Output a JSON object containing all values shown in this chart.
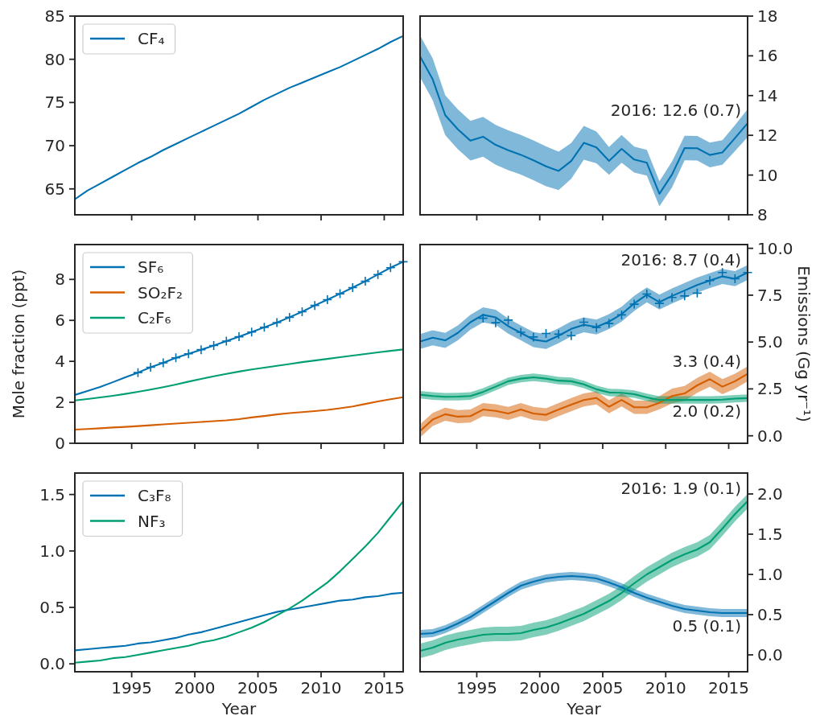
{
  "chart_data": [
    {
      "type": "line",
      "x": [
        1990.5,
        1991.5,
        1992.5,
        1993.5,
        1994.5,
        1995.5,
        1996.5,
        1997.5,
        1998.5,
        1999.5,
        2000.5,
        2001.5,
        2002.5,
        2003.5,
        2004.5,
        2005.5,
        2006.5,
        2007.5,
        2008.5,
        2009.5,
        2010.5,
        2011.5,
        2012.5,
        2013.5,
        2014.5,
        2015.5,
        2016.5
      ],
      "xlim": [
        1990.5,
        2016.5
      ],
      "xticks": [
        1995,
        2000,
        2005,
        2010,
        2015
      ],
      "ylim": [
        62,
        85
      ],
      "yticks": [
        65,
        70,
        75,
        80,
        85
      ],
      "tick_labels": "y",
      "legend": "top left",
      "series": [
        {
          "name": "CF₄",
          "color": "#0072b2",
          "values": [
            63.8,
            64.8,
            65.6,
            66.4,
            67.2,
            68.0,
            68.7,
            69.5,
            70.2,
            70.9,
            71.6,
            72.3,
            73.0,
            73.7,
            74.5,
            75.3,
            76.0,
            76.7,
            77.3,
            77.9,
            78.5,
            79.1,
            79.8,
            80.5,
            81.2,
            82.0,
            82.7
          ]
        }
      ]
    },
    {
      "type": "line",
      "x": [
        1990.5,
        1991.5,
        1992.5,
        1993.5,
        1994.5,
        1995.5,
        1996.5,
        1997.5,
        1998.5,
        1999.5,
        2000.5,
        2001.5,
        2002.5,
        2003.5,
        2004.5,
        2005.5,
        2006.5,
        2007.5,
        2008.5,
        2009.5,
        2010.5,
        2011.5,
        2012.5,
        2013.5,
        2014.5,
        2015.5,
        2016.5
      ],
      "xlim": [
        1990.5,
        2016.5
      ],
      "xticks": [
        1995,
        2000,
        2005,
        2010,
        2015
      ],
      "ylim": [
        8,
        18
      ],
      "yticks": [
        8,
        10,
        12,
        14,
        16,
        18
      ],
      "tick_labels": "y",
      "series": [
        {
          "color": "#0072b2",
          "values": [
            15.97,
            14.82,
            13.01,
            12.3,
            11.73,
            11.93,
            11.52,
            11.25,
            11.02,
            10.74,
            10.44,
            10.21,
            10.71,
            11.62,
            11.39,
            10.71,
            11.32,
            10.78,
            10.62,
            9.06,
            10.03,
            11.36,
            11.35,
            11.01,
            11.14,
            11.86,
            12.61
          ],
          "lower": [
            14.92,
            13.77,
            12.01,
            11.3,
            10.73,
            10.93,
            10.52,
            10.25,
            10.02,
            9.74,
            9.44,
            9.24,
            9.81,
            10.77,
            10.59,
            10.01,
            10.62,
            10.13,
            9.97,
            8.43,
            9.38,
            10.74,
            10.73,
            10.39,
            10.52,
            11.21,
            11.91
          ],
          "upper": [
            17.02,
            15.87,
            14.01,
            13.3,
            12.73,
            12.93,
            12.52,
            12.25,
            12.02,
            11.74,
            11.44,
            11.18,
            11.61,
            12.47,
            12.19,
            11.41,
            12.02,
            11.43,
            11.27,
            9.69,
            10.68,
            11.98,
            11.97,
            11.63,
            11.76,
            12.51,
            13.31
          ]
        }
      ],
      "annotations": [
        "2016: 12.6 (0.7)"
      ]
    },
    {
      "type": "line",
      "x": [
        1990.5,
        1991.5,
        1992.5,
        1993.5,
        1994.5,
        1995.5,
        1996.5,
        1997.5,
        1998.5,
        1999.5,
        2000.5,
        2001.5,
        2002.5,
        2003.5,
        2004.5,
        2005.5,
        2006.5,
        2007.5,
        2008.5,
        2009.5,
        2010.5,
        2011.5,
        2012.5,
        2013.5,
        2014.5,
        2015.5,
        2016.5
      ],
      "xlim": [
        1990.5,
        2016.5
      ],
      "xticks": [
        1995,
        2000,
        2005,
        2010,
        2015
      ],
      "ylim": [
        0,
        9.7
      ],
      "yticks": [
        0,
        2,
        4,
        6,
        8
      ],
      "ylabel": "Mole fraction (ppt)",
      "tick_labels": "y",
      "legend": "top left",
      "series": [
        {
          "name": "SF₆",
          "color": "#0072b2",
          "values": [
            2.36,
            2.55,
            2.75,
            2.98,
            3.22,
            3.45,
            3.71,
            3.93,
            4.17,
            4.37,
            4.57,
            4.77,
            4.99,
            5.2,
            5.43,
            5.66,
            5.89,
            6.15,
            6.42,
            6.73,
            7.01,
            7.3,
            7.6,
            7.91,
            8.24,
            8.57,
            8.86
          ]
        },
        {
          "name": "SO₂F₂",
          "color": "#d55e00",
          "values": [
            0.67,
            0.7,
            0.73,
            0.77,
            0.8,
            0.84,
            0.88,
            0.92,
            0.96,
            1.0,
            1.04,
            1.08,
            1.12,
            1.18,
            1.26,
            1.33,
            1.41,
            1.47,
            1.52,
            1.57,
            1.63,
            1.71,
            1.8,
            1.92,
            2.04,
            2.15,
            2.25
          ]
        },
        {
          "name": "C₂F₆",
          "color": "#009e73",
          "values": [
            2.09,
            2.16,
            2.24,
            2.32,
            2.41,
            2.51,
            2.62,
            2.74,
            2.87,
            3.01,
            3.14,
            3.27,
            3.39,
            3.5,
            3.6,
            3.69,
            3.78,
            3.87,
            3.96,
            4.04,
            4.12,
            4.2,
            4.28,
            4.36,
            4.44,
            4.51,
            4.58
          ]
        },
        {
          "type": "scatter",
          "color": "#0072b2",
          "marker": "cross",
          "x": [
            1995.5,
            1996.5,
            1997.5,
            1998.5,
            1999.5,
            2000.5,
            2001.5,
            2002.5,
            2003.5,
            2004.5,
            2005.5,
            2006.5,
            2007.5,
            2008.5,
            2009.5,
            2010.5,
            2011.5,
            2012.5,
            2013.5,
            2014.5,
            2015.5,
            2016.5
          ],
          "values": [
            3.45,
            3.71,
            3.93,
            4.17,
            4.37,
            4.57,
            4.77,
            4.99,
            5.2,
            5.43,
            5.66,
            5.89,
            6.15,
            6.42,
            6.73,
            7.01,
            7.3,
            7.6,
            7.91,
            8.24,
            8.57,
            8.86
          ]
        }
      ]
    },
    {
      "type": "line",
      "x": [
        1990.5,
        1991.5,
        1992.5,
        1993.5,
        1994.5,
        1995.5,
        1996.5,
        1997.5,
        1998.5,
        1999.5,
        2000.5,
        2001.5,
        2002.5,
        2003.5,
        2004.5,
        2005.5,
        2006.5,
        2007.5,
        2008.5,
        2009.5,
        2010.5,
        2011.5,
        2012.5,
        2013.5,
        2014.5,
        2015.5,
        2016.5
      ],
      "xlim": [
        1990.5,
        2016.5
      ],
      "xticks": [
        1995,
        2000,
        2005,
        2010,
        2015
      ],
      "ylim": [
        -0.4,
        10.2
      ],
      "yticks": [
        {
          "value": 0,
          "label": "0.0"
        },
        2.5,
        {
          "value": 5,
          "label": "5.0"
        },
        7.5,
        {
          "value": 10,
          "label": "10.0"
        }
      ],
      "ylabel": "Emissions (Gg yr⁻¹)",
      "tick_labels": "y",
      "series": [
        {
          "color": "#0072b2",
          "values": [
            5.03,
            5.23,
            5.09,
            5.49,
            6.06,
            6.45,
            6.32,
            5.85,
            5.49,
            5.13,
            5.03,
            5.34,
            5.7,
            5.92,
            5.8,
            6.09,
            6.49,
            7.06,
            7.52,
            7.13,
            7.46,
            7.75,
            8.04,
            8.28,
            8.5,
            8.38,
            8.71
          ],
          "lower": [
            4.63,
            4.83,
            4.69,
            5.09,
            5.66,
            6.05,
            5.92,
            5.45,
            5.09,
            4.73,
            4.63,
            4.94,
            5.3,
            5.52,
            5.4,
            5.69,
            6.09,
            6.66,
            7.12,
            6.73,
            7.06,
            7.35,
            7.64,
            7.88,
            8.1,
            7.98,
            8.31
          ],
          "upper": [
            5.43,
            5.63,
            5.49,
            5.89,
            6.46,
            6.85,
            6.72,
            6.25,
            5.89,
            5.53,
            5.43,
            5.74,
            6.1,
            6.32,
            6.2,
            6.49,
            6.89,
            7.46,
            7.92,
            7.53,
            7.86,
            8.15,
            8.44,
            8.68,
            8.9,
            8.78,
            9.11
          ]
        },
        {
          "color": "#d55e00",
          "values": [
            0.26,
            0.87,
            1.15,
            1.02,
            1.05,
            1.4,
            1.33,
            1.19,
            1.4,
            1.19,
            1.12,
            1.4,
            1.66,
            1.91,
            2.02,
            1.55,
            1.91,
            1.52,
            1.52,
            1.76,
            2.12,
            2.26,
            2.69,
            3.02,
            2.62,
            2.91,
            3.3
          ],
          "lower": [
            -0.09,
            0.52,
            0.8,
            0.67,
            0.7,
            1.05,
            0.98,
            0.84,
            1.05,
            0.84,
            0.77,
            1.05,
            1.31,
            1.56,
            1.67,
            1.2,
            1.56,
            1.17,
            1.17,
            1.41,
            1.72,
            1.86,
            2.29,
            2.62,
            2.22,
            2.51,
            2.9
          ],
          "upper": [
            0.61,
            1.22,
            1.5,
            1.37,
            1.4,
            1.75,
            1.68,
            1.54,
            1.75,
            1.54,
            1.47,
            1.75,
            2.01,
            2.26,
            2.37,
            1.9,
            2.26,
            1.87,
            1.87,
            2.11,
            2.52,
            2.66,
            3.09,
            3.42,
            3.02,
            3.31,
            3.7
          ]
        },
        {
          "color": "#009e73",
          "values": [
            2.19,
            2.12,
            2.08,
            2.09,
            2.12,
            2.34,
            2.62,
            2.91,
            3.05,
            3.12,
            3.05,
            2.94,
            2.91,
            2.74,
            2.48,
            2.31,
            2.29,
            2.22,
            2.05,
            1.91,
            1.91,
            1.91,
            1.91,
            1.91,
            1.93,
            1.98,
            2.01
          ],
          "lower": [
            1.99,
            1.92,
            1.88,
            1.89,
            1.92,
            2.14,
            2.42,
            2.71,
            2.85,
            2.92,
            2.85,
            2.74,
            2.71,
            2.54,
            2.28,
            2.11,
            2.09,
            2.02,
            1.85,
            1.71,
            1.71,
            1.71,
            1.71,
            1.71,
            1.73,
            1.78,
            1.81
          ],
          "upper": [
            2.39,
            2.32,
            2.28,
            2.29,
            2.32,
            2.54,
            2.82,
            3.11,
            3.25,
            3.32,
            3.25,
            3.14,
            3.11,
            2.94,
            2.68,
            2.51,
            2.49,
            2.42,
            2.25,
            2.11,
            2.11,
            2.11,
            2.11,
            2.11,
            2.13,
            2.18,
            2.21
          ]
        },
        {
          "type": "scatter",
          "color": "#0072b2",
          "marker": "cross",
          "x": [
            1995.5,
            1996.5,
            1997.5,
            1998.5,
            1999.5,
            2000.5,
            2001.5,
            2002.5,
            2003.5,
            2004.5,
            2005.5,
            2006.5,
            2007.5,
            2008.5,
            2009.5,
            2010.5,
            2011.5,
            2012.5,
            2013.5,
            2014.5,
            2015.5,
            2016.5
          ],
          "values": [
            6.27,
            6.03,
            6.17,
            5.52,
            5.27,
            5.46,
            5.42,
            5.34,
            6.06,
            5.77,
            5.99,
            6.45,
            7.02,
            7.56,
            7.06,
            7.38,
            7.46,
            7.61,
            8.28,
            8.71,
            8.38,
            8.71
          ]
        }
      ],
      "annotations": [
        "2016: 8.7 (0.4)",
        "3.3 (0.4)",
        "2.0 (0.2)"
      ]
    },
    {
      "type": "line",
      "x": [
        1990.5,
        1991.5,
        1992.5,
        1993.5,
        1994.5,
        1995.5,
        1996.5,
        1997.5,
        1998.5,
        1999.5,
        2000.5,
        2001.5,
        2002.5,
        2003.5,
        2004.5,
        2005.5,
        2006.5,
        2007.5,
        2008.5,
        2009.5,
        2010.5,
        2011.5,
        2012.5,
        2013.5,
        2014.5,
        2015.5,
        2016.5
      ],
      "xlim": [
        1990.5,
        2016.5
      ],
      "xticks": [
        1995,
        2000,
        2005,
        2010,
        2015
      ],
      "ylim": [
        -0.07,
        1.69
      ],
      "yticks": [
        {
          "value": 0,
          "label": "0.0"
        },
        0.5,
        {
          "value": 1,
          "label": "1.0"
        },
        1.5
      ],
      "xlabel": "Year",
      "legend": "top left",
      "series": [
        {
          "name": "C₃F₈",
          "color": "#0072b2",
          "values": [
            0.12,
            0.13,
            0.14,
            0.15,
            0.16,
            0.18,
            0.19,
            0.21,
            0.23,
            0.26,
            0.28,
            0.31,
            0.34,
            0.37,
            0.4,
            0.43,
            0.46,
            0.48,
            0.5,
            0.52,
            0.54,
            0.56,
            0.57,
            0.59,
            0.6,
            0.62,
            0.63
          ]
        },
        {
          "name": "NF₃",
          "color": "#009e73",
          "values": [
            0.01,
            0.02,
            0.03,
            0.05,
            0.06,
            0.08,
            0.1,
            0.12,
            0.14,
            0.16,
            0.19,
            0.21,
            0.24,
            0.28,
            0.32,
            0.37,
            0.43,
            0.49,
            0.56,
            0.64,
            0.72,
            0.82,
            0.93,
            1.04,
            1.16,
            1.3,
            1.44
          ]
        }
      ]
    },
    {
      "type": "line",
      "x": [
        1990.5,
        1991.5,
        1992.5,
        1993.5,
        1994.5,
        1995.5,
        1996.5,
        1997.5,
        1998.5,
        1999.5,
        2000.5,
        2001.5,
        2002.5,
        2003.5,
        2004.5,
        2005.5,
        2006.5,
        2007.5,
        2008.5,
        2009.5,
        2010.5,
        2011.5,
        2012.5,
        2013.5,
        2014.5,
        2015.5,
        2016.5
      ],
      "xlim": [
        1990.5,
        2016.5
      ],
      "xticks": [
        1995,
        2000,
        2005,
        2010,
        2015
      ],
      "ylim": [
        -0.21,
        2.26
      ],
      "yticks": [
        {
          "value": 0,
          "label": "0.0"
        },
        0.5,
        {
          "value": 1,
          "label": "1.0"
        },
        1.5,
        {
          "value": 2,
          "label": "2.0"
        }
      ],
      "xlabel": "Year",
      "series": [
        {
          "color": "#0072b2",
          "values": [
            0.26,
            0.27,
            0.32,
            0.39,
            0.47,
            0.57,
            0.67,
            0.77,
            0.86,
            0.91,
            0.95,
            0.97,
            0.98,
            0.97,
            0.95,
            0.9,
            0.84,
            0.77,
            0.71,
            0.66,
            0.61,
            0.57,
            0.55,
            0.53,
            0.52,
            0.52,
            0.52
          ],
          "lower": [
            0.21,
            0.22,
            0.27,
            0.34,
            0.42,
            0.52,
            0.62,
            0.72,
            0.81,
            0.86,
            0.9,
            0.92,
            0.93,
            0.92,
            0.9,
            0.85,
            0.79,
            0.72,
            0.66,
            0.61,
            0.56,
            0.52,
            0.5,
            0.48,
            0.47,
            0.47,
            0.47
          ],
          "upper": [
            0.31,
            0.32,
            0.37,
            0.44,
            0.52,
            0.62,
            0.72,
            0.82,
            0.91,
            0.96,
            1.0,
            1.02,
            1.03,
            1.02,
            1.0,
            0.95,
            0.89,
            0.82,
            0.76,
            0.71,
            0.66,
            0.62,
            0.6,
            0.58,
            0.57,
            0.57,
            0.57
          ]
        },
        {
          "color": "#009e73",
          "values": [
            0.05,
            0.09,
            0.15,
            0.19,
            0.22,
            0.25,
            0.26,
            0.26,
            0.27,
            0.31,
            0.34,
            0.39,
            0.45,
            0.51,
            0.59,
            0.67,
            0.77,
            0.89,
            1.0,
            1.09,
            1.18,
            1.25,
            1.31,
            1.4,
            1.57,
            1.75,
            1.91
          ],
          "lower": [
            -0.04,
            0.0,
            0.06,
            0.1,
            0.13,
            0.16,
            0.17,
            0.17,
            0.18,
            0.22,
            0.25,
            0.3,
            0.36,
            0.42,
            0.5,
            0.58,
            0.68,
            0.8,
            0.91,
            1.0,
            1.09,
            1.16,
            1.22,
            1.31,
            1.48,
            1.66,
            1.82
          ],
          "upper": [
            0.14,
            0.18,
            0.24,
            0.28,
            0.31,
            0.34,
            0.35,
            0.35,
            0.36,
            0.4,
            0.43,
            0.48,
            0.54,
            0.6,
            0.68,
            0.76,
            0.86,
            0.98,
            1.09,
            1.18,
            1.27,
            1.34,
            1.4,
            1.49,
            1.66,
            1.84,
            2.0
          ]
        }
      ],
      "annotations": [
        "0.5 (0.1)",
        "2016: 1.9 (0.1)"
      ]
    }
  ]
}
